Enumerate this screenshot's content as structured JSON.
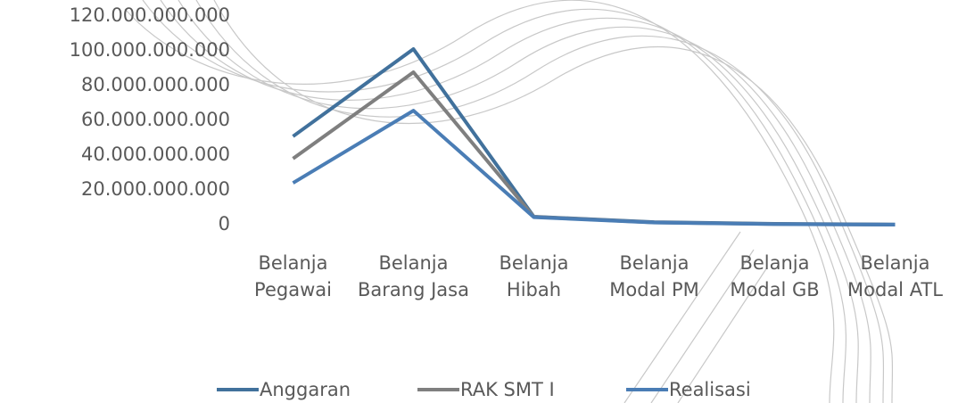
{
  "chart_data": {
    "type": "line",
    "categories": [
      "Belanja Pegawai",
      "Belanja Barang Jasa",
      "Belanja Hibah",
      "Belanja Modal PM",
      "Belanja Modal GB",
      "Belanja Modal ATL"
    ],
    "series": [
      {
        "name": "Anggaran",
        "color": "#41719c",
        "values": [
          50800000000,
          101000000000,
          4600000000,
          1500000000,
          500000000,
          100000000
        ]
      },
      {
        "name": "RAK SMT I",
        "color": "#7f7f7f",
        "values": [
          38000000000,
          87700000000,
          4500000000,
          1300000000,
          400000000,
          0
        ]
      },
      {
        "name": "Realisasi",
        "color": "#4a7db5",
        "values": [
          24000000000,
          65600000000,
          4300000000,
          1200000000,
          300000000,
          0
        ]
      }
    ],
    "ylim": [
      0,
      120000000000
    ],
    "yticks": [
      0,
      {
        "value": 20000000000,
        "label": "20.000.000.000"
      },
      {
        "value": 40000000000,
        "label": "40.000.000.000"
      },
      {
        "value": 60000000000,
        "label": "60.000.000.000"
      },
      {
        "value": 80000000000,
        "label": "80.000.000.000"
      },
      {
        "value": 100000000000,
        "label": "100.000.000.000"
      },
      {
        "value": 120000000000,
        "label": "120.000.000.000"
      }
    ]
  }
}
